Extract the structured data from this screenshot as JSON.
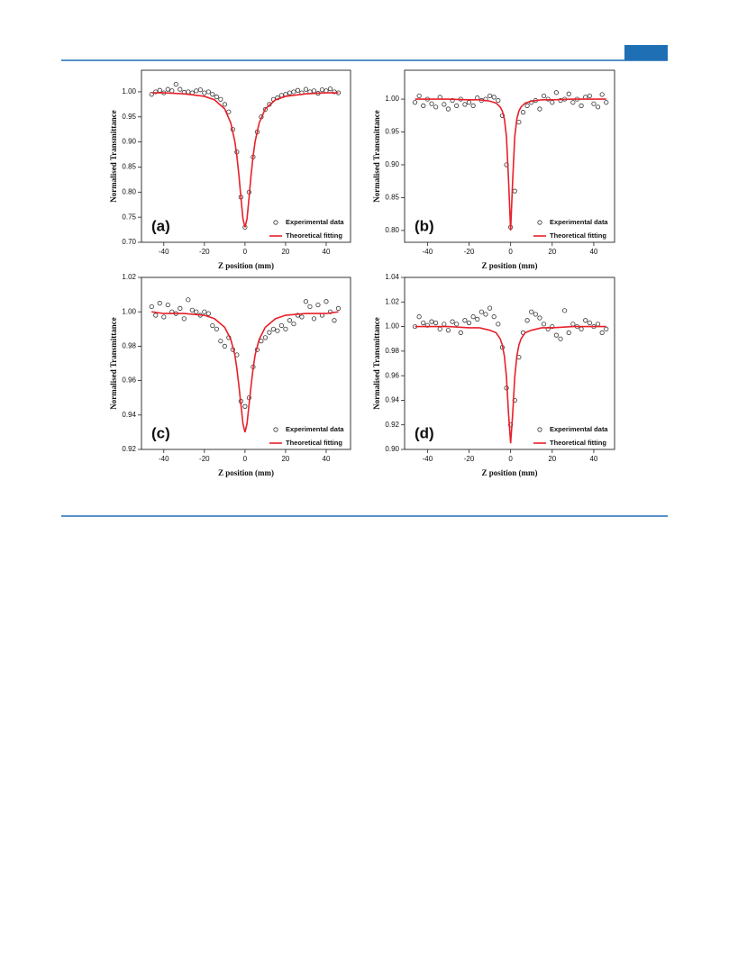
{
  "chart_data": [
    {
      "type": "scatter",
      "panel_label": "(a)",
      "xlabel": "Z position (mm)",
      "ylabel": "Normalised Transmittance",
      "xlim": [
        -51,
        52
      ],
      "xticks": [
        -40,
        -20,
        0,
        20,
        40
      ],
      "ylim": [
        0.7,
        1.043
      ],
      "yticks": [
        {
          "value": 0.7,
          "label": "0.70"
        },
        0.75,
        {
          "value": 0.8,
          "label": "0.80"
        },
        0.85,
        {
          "value": 0.9,
          "label": "0.90"
        },
        0.95,
        {
          "value": 1.0,
          "label": "1.00"
        }
      ],
      "legend": "lower right",
      "series": [
        {
          "name": "Experimental data",
          "type": "scatter",
          "color": "#333333",
          "x": [
            -46,
            -44,
            -42,
            -40,
            -38,
            -36,
            -34,
            -32,
            -30,
            -28,
            -26,
            -24,
            -22,
            -20,
            -18,
            -16,
            -14,
            -12,
            -10,
            -8,
            -6,
            -4,
            -2,
            0,
            2,
            4,
            6,
            8,
            10,
            12,
            14,
            16,
            18,
            20,
            22,
            24,
            26,
            28,
            30,
            32,
            34,
            36,
            38,
            40,
            42,
            44,
            46
          ],
          "values": [
            0.995,
            1.0,
            1.003,
            0.998,
            1.005,
            1.002,
            1.015,
            1.005,
            0.999,
            1.0,
            0.998,
            1.002,
            1.004,
            0.998,
            1.0,
            0.995,
            0.99,
            0.985,
            0.975,
            0.96,
            0.925,
            0.88,
            0.79,
            0.73,
            0.8,
            0.87,
            0.92,
            0.95,
            0.965,
            0.975,
            0.985,
            0.988,
            0.993,
            0.995,
            0.998,
            1.0,
            1.003,
            0.998,
            1.005,
            1.0,
            1.002,
            0.997,
            1.004,
            1.002,
            1.006,
            1.0,
            0.998
          ]
        },
        {
          "name": "Theoretical fitting",
          "type": "line",
          "color": "#e8202a",
          "x": [
            -46,
            -40,
            -30,
            -20,
            -15,
            -10,
            -7,
            -5,
            -4,
            -3,
            -2,
            -1,
            0,
            1,
            2,
            3,
            4,
            5,
            7,
            10,
            15,
            20,
            30,
            40,
            46
          ],
          "values": [
            0.998,
            0.998,
            0.996,
            0.991,
            0.984,
            0.966,
            0.938,
            0.901,
            0.872,
            0.834,
            0.789,
            0.747,
            0.73,
            0.747,
            0.789,
            0.834,
            0.872,
            0.901,
            0.938,
            0.966,
            0.984,
            0.991,
            0.996,
            0.998,
            0.998
          ]
        }
      ]
    },
    {
      "type": "scatter",
      "panel_label": "(b)",
      "xlabel": "Z position (mm)",
      "ylabel": "Normalised Transmittance",
      "xlim": [
        -51,
        50
      ],
      "xticks": [
        -40,
        -20,
        0,
        20,
        40
      ],
      "ylim": [
        0.782,
        1.044
      ],
      "yticks": [
        {
          "value": 0.8,
          "label": "0.80"
        },
        0.85,
        {
          "value": 0.9,
          "label": "0.90"
        },
        0.95,
        {
          "value": 1.0,
          "label": "1.00"
        }
      ],
      "legend": "lower right",
      "series": [
        {
          "name": "Experimental data",
          "type": "scatter",
          "color": "#333333",
          "x": [
            -46,
            -44,
            -42,
            -40,
            -38,
            -36,
            -34,
            -32,
            -30,
            -28,
            -26,
            -24,
            -22,
            -20,
            -18,
            -16,
            -14,
            -12,
            -10,
            -8,
            -6,
            -4,
            -2,
            0,
            2,
            4,
            6,
            8,
            10,
            12,
            14,
            16,
            18,
            20,
            22,
            24,
            26,
            28,
            30,
            32,
            34,
            36,
            38,
            40,
            42,
            44,
            46
          ],
          "values": [
            0.995,
            1.005,
            0.99,
            1.0,
            0.993,
            0.988,
            1.003,
            0.992,
            0.985,
            0.998,
            0.99,
            1.0,
            0.992,
            0.995,
            0.99,
            1.002,
            0.998,
            1.0,
            1.005,
            1.003,
            0.998,
            0.975,
            0.9,
            0.805,
            0.86,
            0.965,
            0.98,
            0.99,
            0.995,
            0.998,
            0.985,
            1.005,
            1.0,
            0.995,
            1.01,
            0.998,
            1.0,
            1.008,
            0.995,
            1.0,
            0.99,
            1.003,
            1.005,
            0.993,
            0.988,
            1.007,
            0.995
          ]
        },
        {
          "name": "Theoretical fitting",
          "type": "line",
          "color": "#e8202a",
          "x": [
            -46,
            -40,
            -30,
            -20,
            -15,
            -10,
            -7,
            -5,
            -4,
            -3,
            -2,
            -1,
            0,
            1,
            2,
            3,
            4,
            5,
            7,
            10,
            15,
            20,
            30,
            40,
            46
          ],
          "values": [
            1.0,
            1.0,
            1.0,
            0.999,
            0.999,
            0.997,
            0.994,
            0.988,
            0.982,
            0.97,
            0.943,
            0.877,
            0.8,
            0.877,
            0.943,
            0.97,
            0.982,
            0.988,
            0.994,
            0.997,
            0.999,
            0.999,
            1.0,
            1.0,
            1.0
          ]
        }
      ]
    },
    {
      "type": "scatter",
      "panel_label": "(c)",
      "xlabel": "Z position (mm)",
      "ylabel": "Normalised Transmittance",
      "xlim": [
        -51,
        52
      ],
      "xticks": [
        -40,
        -20,
        0,
        20,
        40
      ],
      "ylim": [
        0.92,
        1.02
      ],
      "yticks": [
        0.92,
        0.94,
        0.96,
        0.98,
        {
          "value": 1.0,
          "label": "1.00"
        },
        1.02
      ],
      "legend": "lower right",
      "series": [
        {
          "name": "Experimental data",
          "type": "scatter",
          "color": "#333333",
          "x": [
            -46,
            -44,
            -42,
            -40,
            -38,
            -36,
            -34,
            -32,
            -30,
            -28,
            -26,
            -24,
            -22,
            -20,
            -18,
            -16,
            -14,
            -12,
            -10,
            -8,
            -6,
            -4,
            -2,
            0,
            2,
            4,
            6,
            8,
            10,
            12,
            14,
            16,
            18,
            20,
            22,
            24,
            26,
            28,
            30,
            32,
            34,
            36,
            38,
            40,
            42,
            44,
            46
          ],
          "values": [
            1.003,
            0.998,
            1.005,
            0.997,
            1.004,
            1.0,
            0.999,
            1.002,
            0.996,
            1.007,
            1.001,
            1.0,
            0.998,
            1.0,
            0.999,
            0.992,
            0.99,
            0.983,
            0.98,
            0.985,
            0.978,
            0.975,
            0.948,
            0.945,
            0.95,
            0.968,
            0.978,
            0.983,
            0.985,
            0.988,
            0.99,
            0.989,
            0.992,
            0.99,
            0.995,
            0.993,
            0.998,
            0.997,
            1.006,
            1.003,
            0.996,
            1.004,
            0.998,
            1.006,
            1.0,
            0.995,
            1.002
          ]
        },
        {
          "name": "Theoretical fitting",
          "type": "line",
          "color": "#e8202a",
          "x": [
            -46,
            -40,
            -30,
            -20,
            -15,
            -10,
            -7,
            -5,
            -4,
            -3,
            -2,
            -1,
            0,
            1,
            2,
            3,
            4,
            5,
            7,
            10,
            15,
            20,
            30,
            40,
            46
          ],
          "values": [
            1.0,
            0.999,
            0.999,
            0.998,
            0.996,
            0.991,
            0.984,
            0.975,
            0.967,
            0.957,
            0.946,
            0.935,
            0.93,
            0.935,
            0.946,
            0.957,
            0.967,
            0.975,
            0.984,
            0.991,
            0.996,
            0.998,
            0.999,
            0.999,
            1.0
          ]
        }
      ]
    },
    {
      "type": "scatter",
      "panel_label": "(d)",
      "xlabel": "Z position (mm)",
      "ylabel": "Normalised Transmittance",
      "xlim": [
        -51,
        50
      ],
      "xticks": [
        -40,
        -20,
        0,
        20,
        40
      ],
      "ylim": [
        0.9,
        1.04
      ],
      "yticks": [
        {
          "value": 0.9,
          "label": "0.90"
        },
        0.92,
        0.94,
        0.96,
        0.98,
        {
          "value": 1.0,
          "label": "1.00"
        },
        1.02,
        1.04
      ],
      "legend": "lower right",
      "series": [
        {
          "name": "Experimental data",
          "type": "scatter",
          "color": "#333333",
          "x": [
            -46,
            -44,
            -42,
            -40,
            -38,
            -36,
            -34,
            -32,
            -30,
            -28,
            -26,
            -24,
            -22,
            -20,
            -18,
            -16,
            -14,
            -12,
            -10,
            -8,
            -6,
            -4,
            -2,
            0,
            2,
            4,
            6,
            8,
            10,
            12,
            14,
            16,
            18,
            20,
            22,
            24,
            26,
            28,
            30,
            32,
            34,
            36,
            38,
            40,
            42,
            44,
            46
          ],
          "values": [
            1.0,
            1.008,
            1.003,
            1.001,
            1.004,
            1.003,
            0.998,
            1.002,
            0.997,
            1.004,
            1.002,
            0.995,
            1.005,
            1.003,
            1.008,
            1.006,
            1.012,
            1.01,
            1.015,
            1.008,
            1.002,
            0.983,
            0.95,
            0.92,
            0.94,
            0.975,
            0.995,
            1.005,
            1.012,
            1.01,
            1.007,
            1.002,
            0.998,
            1.0,
            0.993,
            0.99,
            1.013,
            0.995,
            1.002,
            1.0,
            0.998,
            1.005,
            1.003,
            1.0,
            1.002,
            0.995,
            0.998
          ]
        },
        {
          "name": "Theoretical fitting",
          "type": "line",
          "color": "#e8202a",
          "x": [
            -46,
            -40,
            -30,
            -20,
            -15,
            -10,
            -7,
            -5,
            -4,
            -3,
            -2,
            -1,
            0,
            1,
            2,
            3,
            4,
            5,
            7,
            10,
            15,
            20,
            30,
            40,
            46
          ],
          "values": [
            1.0,
            1.0,
            1.0,
            0.999,
            0.999,
            0.997,
            0.995,
            0.99,
            0.985,
            0.976,
            0.959,
            0.929,
            0.905,
            0.929,
            0.959,
            0.976,
            0.985,
            0.99,
            0.995,
            0.997,
            0.999,
            0.999,
            1.0,
            1.0,
            1.0
          ]
        }
      ]
    }
  ]
}
